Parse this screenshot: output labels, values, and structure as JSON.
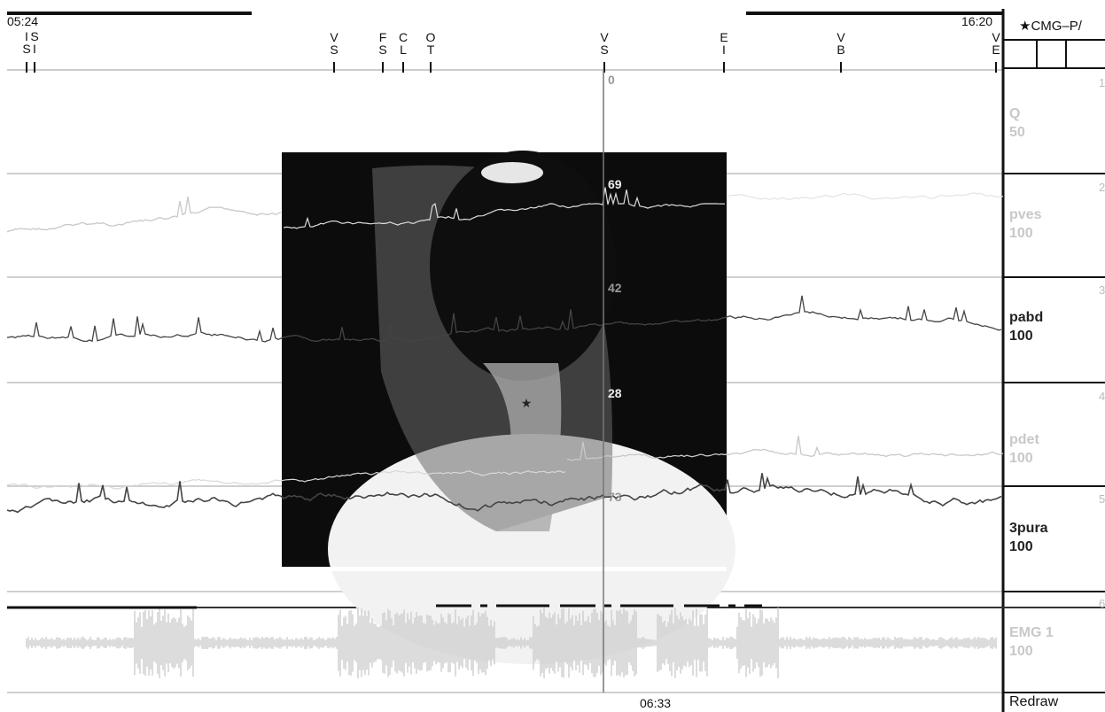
{
  "chart_data": {
    "type": "line",
    "title": "",
    "time_start": "05:24",
    "time_end": "16:20",
    "cursor_time": "06:33",
    "event_markers": [
      {
        "upper": "I",
        "lower": "S"
      },
      {
        "upper": "S",
        "lower": "I"
      },
      {
        "upper": "V",
        "lower": "S"
      },
      {
        "upper": "F",
        "lower": "S"
      },
      {
        "upper": "C",
        "lower": "L"
      },
      {
        "upper": "O",
        "lower": "T"
      },
      {
        "upper": "V",
        "lower": "S"
      },
      {
        "upper": "E",
        "lower": "I"
      },
      {
        "upper": "V",
        "lower": "B"
      },
      {
        "upper": "V",
        "lower": "E"
      }
    ],
    "channels": [
      {
        "number": "1",
        "name": "Q",
        "scale": "50",
        "cursor_value": "0",
        "color": "#c8c8c8"
      },
      {
        "number": "2",
        "name": "pves",
        "scale": "100",
        "cursor_value": "69",
        "color": "#c8c8c8"
      },
      {
        "number": "3",
        "name": "pabd",
        "scale": "100",
        "cursor_value": "42",
        "color": "#444444"
      },
      {
        "number": "4",
        "name": "pdet",
        "scale": "100",
        "cursor_value": "28",
        "color": "#c8c8c8"
      },
      {
        "number": "5",
        "name": "3pura",
        "scale": "100",
        "cursor_value": "73",
        "color": "#444444"
      },
      {
        "number": "6",
        "name": "EMG 1",
        "scale": "100",
        "cursor_value": "",
        "color": "#c8c8c8"
      }
    ]
  },
  "sidebar": {
    "header": "★CMG–P/",
    "redraw_label": "Redraw"
  },
  "image_annotation": "★"
}
